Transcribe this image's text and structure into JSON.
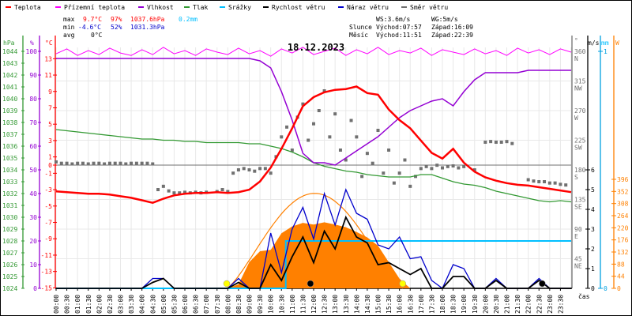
{
  "chart_data": {
    "type": "line",
    "title": "18.12.2023",
    "legend": [
      {
        "label": "Teplota",
        "color": "#ff0000"
      },
      {
        "label": "Přízemní teplota",
        "color": "#ff00ff"
      },
      {
        "label": "Vlhkost",
        "color": "#9400d3"
      },
      {
        "label": "Tlak",
        "color": "#339933"
      },
      {
        "label": "Srážky",
        "color": "#00bfff"
      },
      {
        "label": "Rychlost větru",
        "color": "#000000"
      },
      {
        "label": "Náraz větru",
        "color": "#0000cc"
      },
      {
        "label": "Směr větru",
        "color": "#707070"
      }
    ],
    "stats": {
      "max_label": "max",
      "min_label": "min",
      "avg_label": "avg",
      "temp_max": "9.7°C",
      "hum_max": "97%",
      "pres_max": "1037.6hPa",
      "rain_sum": "0.2mm",
      "temp_min": "-4.6°C",
      "hum_min": "52%",
      "pres_min": "1031.3hPa",
      "temp_avg": "0°C",
      "ws": "WS:3.6m/s",
      "wg": "WG:5m/s",
      "sun_label": "Slunce",
      "sun_rise": "Východ:07:57",
      "sun_set": "Západ:16:09",
      "moon_label": "Měsíc",
      "moon_rise": "Východ:11:51",
      "moon_set": "Západ:22:39"
    },
    "axes": {
      "pressure": {
        "unit": "hPa",
        "range": [
          1024,
          1044
        ],
        "ticks": [
          "1024",
          "1025",
          "1026",
          "1027",
          "1028",
          "1029",
          "1030",
          "1031",
          "1032",
          "1033",
          "1034",
          "1035",
          "1036",
          "1037",
          "1038",
          "1039",
          "1040",
          "1041",
          "1042",
          "1043",
          "1044"
        ]
      },
      "humidity": {
        "unit": "%",
        "range": [
          0,
          100
        ],
        "ticks": [
          "0",
          "10",
          "20",
          "30",
          "40",
          "50",
          "60",
          "70",
          "80",
          "90",
          "100"
        ]
      },
      "temperature": {
        "unit": "°C",
        "range": [
          -15,
          13
        ],
        "ticks": [
          "-15",
          "-13",
          "-11",
          "-9",
          "-7",
          "-5",
          "-3",
          "-1",
          "1",
          "3",
          "5",
          "7",
          "9",
          "11",
          "13"
        ],
        "zero_tick": "0"
      },
      "direction": {
        "unit": "°",
        "range": [
          0,
          360
        ],
        "ticks": [
          {
            "v": "45",
            "d": "NE"
          },
          {
            "v": "90",
            "d": "E"
          },
          {
            "v": "135",
            "d": "SE"
          },
          {
            "v": "180",
            "d": "S"
          },
          {
            "v": "225",
            "d": "SW"
          },
          {
            "v": "270",
            "d": "W"
          },
          {
            "v": "315",
            "d": "NW"
          },
          {
            "v": "360",
            "d": "N"
          }
        ]
      },
      "wind": {
        "unit": "m/s",
        "range": [
          0,
          6
        ],
        "ticks": [
          "0",
          "1",
          "2",
          "3",
          "4",
          "5",
          "6"
        ]
      },
      "rain": {
        "unit": "mm",
        "range": [
          0,
          1
        ],
        "ticks": [
          "0",
          "1"
        ]
      },
      "solar": {
        "unit": "W",
        "range": [
          0,
          396
        ],
        "ticks": [
          "0",
          "44",
          "88",
          "132",
          "176",
          "220",
          "264",
          "308",
          "352",
          "396"
        ]
      },
      "time": {
        "label": "čas",
        "ticks": [
          "00:00",
          "00:30",
          "01:00",
          "01:30",
          "02:00",
          "02:30",
          "03:00",
          "03:30",
          "04:00",
          "04:30",
          "05:00",
          "05:30",
          "06:00",
          "06:30",
          "07:00",
          "07:30",
          "08:00",
          "08:30",
          "09:00",
          "09:30",
          "10:00",
          "10:30",
          "11:00",
          "11:30",
          "12:00",
          "12:30",
          "13:00",
          "13:30",
          "14:00",
          "14:30",
          "15:00",
          "15:30",
          "16:00",
          "16:30",
          "17:00",
          "17:30",
          "18:00",
          "18:30",
          "19:00",
          "19:30",
          "20:00",
          "20:30",
          "21:00",
          "21:30",
          "22:00",
          "22:30",
          "23:00",
          "23:30"
        ]
      }
    },
    "x_hours_step": 0.5,
    "series": {
      "temperature": [
        -3.2,
        -3.3,
        -3.4,
        -3.5,
        -3.5,
        -3.6,
        -3.8,
        -4.0,
        -4.3,
        -4.6,
        -4.1,
        -3.7,
        -3.5,
        -3.4,
        -3.4,
        -3.3,
        -3.4,
        -3.3,
        -3.0,
        -2.0,
        -0.3,
        2.0,
        4.5,
        7.2,
        8.3,
        8.9,
        9.2,
        9.3,
        9.6,
        8.8,
        8.6,
        6.8,
        5.5,
        4.5,
        3.0,
        1.5,
        0.8,
        2.0,
        0.3,
        -0.8,
        -1.5,
        -1.9,
        -2.2,
        -2.4,
        -2.5,
        -2.7,
        -2.9,
        -3.1,
        -3.3
      ],
      "apparent_temperature": [
        13.6,
        14.2,
        13.4,
        14.0,
        13.5,
        14.3,
        13.7,
        13.4,
        14.1,
        13.5,
        14.4,
        13.6,
        14.0,
        13.4,
        14.2,
        13.8,
        13.5,
        14.3,
        13.6,
        14.0,
        13.3,
        14.2,
        13.7,
        14.4,
        13.5,
        13.9,
        14.3,
        13.4,
        14.1,
        13.6,
        14.4,
        13.5,
        14.0,
        13.7,
        14.3,
        13.4,
        14.1,
        13.8,
        13.5,
        14.2,
        13.6,
        14.0,
        13.4,
        14.3,
        13.7,
        14.1,
        13.5,
        14.2,
        13.8
      ],
      "humidity": [
        97,
        97,
        97,
        97,
        97,
        97,
        97,
        97,
        97,
        97,
        97,
        97,
        97,
        97,
        97,
        97,
        97,
        97,
        97,
        96,
        93,
        83,
        71,
        57,
        53,
        53,
        52,
        55,
        58,
        61,
        64,
        68,
        72,
        75,
        77,
        79,
        80,
        77,
        83,
        88,
        91,
        91,
        91,
        91,
        92,
        92,
        92,
        92,
        92
      ],
      "pressure": [
        1037.4,
        1037.3,
        1037.2,
        1037.1,
        1037.0,
        1036.9,
        1036.8,
        1036.7,
        1036.6,
        1036.6,
        1036.5,
        1036.5,
        1036.4,
        1036.4,
        1036.3,
        1036.3,
        1036.3,
        1036.3,
        1036.2,
        1036.2,
        1036.0,
        1035.8,
        1035.5,
        1035.1,
        1034.6,
        1034.3,
        1034.1,
        1033.9,
        1033.8,
        1033.6,
        1033.5,
        1033.4,
        1033.4,
        1033.4,
        1033.6,
        1033.6,
        1033.3,
        1033.0,
        1032.8,
        1032.7,
        1032.5,
        1032.2,
        1032.0,
        1031.8,
        1031.6,
        1031.4,
        1031.3,
        1031.4,
        1031.3
      ],
      "wind_speed": [
        0,
        0,
        0,
        0,
        0,
        0,
        0,
        0,
        0,
        0.3,
        0.5,
        0,
        0,
        0,
        0,
        0,
        0,
        0.3,
        0,
        0,
        1.2,
        0.4,
        1.6,
        2.6,
        1.3,
        2.9,
        2.0,
        3.6,
        2.6,
        2.3,
        1.2,
        1.3,
        1.0,
        0.7,
        1.0,
        0,
        0,
        0.6,
        0.6,
        0,
        0,
        0.4,
        0,
        0,
        0,
        0.4,
        0,
        0,
        0
      ],
      "wind_gust": [
        0,
        0,
        0,
        0,
        0,
        0,
        0,
        0,
        0,
        0.5,
        0.5,
        0,
        0,
        0,
        0,
        0,
        0,
        0.5,
        0,
        0,
        2.8,
        0.8,
        3.0,
        4.1,
        2.5,
        4.8,
        3.2,
        5.0,
        3.8,
        3.5,
        2.2,
        2.0,
        2.6,
        1.5,
        1.6,
        0.4,
        0,
        1.2,
        1.0,
        0,
        0,
        0.5,
        0,
        0,
        0,
        0.5,
        0,
        0,
        0
      ],
      "solar": [
        0,
        0,
        0,
        0,
        0,
        0,
        0,
        0,
        0,
        0,
        0,
        0,
        0,
        0,
        0,
        0,
        0,
        15,
        95,
        135,
        140,
        200,
        225,
        238,
        232,
        240,
        232,
        222,
        205,
        185,
        155,
        95,
        35,
        0,
        0,
        0,
        0,
        0,
        0,
        0,
        0,
        0,
        0,
        0,
        0,
        0,
        0,
        0,
        0
      ],
      "solar_theoretical_max": 345,
      "rain_cumulative": [
        [
          0,
          0
        ],
        [
          10.7,
          0
        ],
        [
          10.7,
          0.2
        ],
        [
          24,
          0.2
        ]
      ],
      "wind_direction": [
        [
          0,
          192
        ],
        [
          0.25,
          190
        ],
        [
          0.5,
          190
        ],
        [
          0.75,
          189
        ],
        [
          1,
          190
        ],
        [
          1.25,
          190
        ],
        [
          1.5,
          189
        ],
        [
          1.75,
          190
        ],
        [
          2,
          190
        ],
        [
          2.25,
          189
        ],
        [
          2.5,
          190
        ],
        [
          2.75,
          190
        ],
        [
          3,
          190
        ],
        [
          3.25,
          189
        ],
        [
          3.5,
          190
        ],
        [
          3.75,
          190
        ],
        [
          4,
          190
        ],
        [
          4.25,
          190
        ],
        [
          4.5,
          189
        ],
        [
          4.75,
          150
        ],
        [
          5,
          155
        ],
        [
          5.25,
          148
        ],
        [
          5.5,
          145
        ],
        [
          5.75,
          145
        ],
        [
          6,
          146
        ],
        [
          6.25,
          145
        ],
        [
          6.5,
          146
        ],
        [
          6.75,
          145
        ],
        [
          7,
          146
        ],
        [
          7.5,
          147
        ],
        [
          7.75,
          150
        ],
        [
          8,
          147
        ],
        [
          8.25,
          175
        ],
        [
          8.5,
          180
        ],
        [
          8.75,
          182
        ],
        [
          9,
          180
        ],
        [
          9.25,
          178
        ],
        [
          9.5,
          182
        ],
        [
          9.75,
          182
        ],
        [
          10,
          175
        ],
        [
          10.25,
          200
        ],
        [
          10.5,
          230
        ],
        [
          10.75,
          245
        ],
        [
          11,
          210
        ],
        [
          11.25,
          260
        ],
        [
          11.5,
          280
        ],
        [
          11.75,
          225
        ],
        [
          12,
          250
        ],
        [
          12.25,
          270
        ],
        [
          12.5,
          300
        ],
        [
          12.75,
          230
        ],
        [
          13,
          265
        ],
        [
          13.25,
          210
        ],
        [
          13.5,
          195
        ],
        [
          13.75,
          255
        ],
        [
          14,
          230
        ],
        [
          14.25,
          170
        ],
        [
          14.5,
          205
        ],
        [
          14.75,
          190
        ],
        [
          15,
          240
        ],
        [
          15.25,
          175
        ],
        [
          15.5,
          210
        ],
        [
          15.75,
          160
        ],
        [
          16,
          175
        ],
        [
          16.25,
          195
        ],
        [
          16.5,
          155
        ],
        [
          16.75,
          170
        ],
        [
          17,
          182
        ],
        [
          17.25,
          185
        ],
        [
          17.5,
          182
        ],
        [
          17.75,
          187
        ],
        [
          18,
          183
        ],
        [
          18.25,
          185
        ],
        [
          18.5,
          186
        ],
        [
          18.75,
          183
        ],
        [
          19,
          185
        ],
        [
          19.5,
          180
        ],
        [
          20,
          222
        ],
        [
          20.25,
          223
        ],
        [
          20.5,
          222
        ],
        [
          20.75,
          222
        ],
        [
          21,
          223
        ],
        [
          21.25,
          220
        ],
        [
          22,
          165
        ],
        [
          22.25,
          163
        ],
        [
          22.5,
          162
        ],
        [
          22.75,
          162
        ],
        [
          23,
          160
        ],
        [
          23.25,
          160
        ],
        [
          23.5,
          158
        ],
        [
          23.75,
          157
        ]
      ]
    },
    "markers": {
      "sunrise_h": 7.95,
      "sunset_h": 16.15,
      "moonrise_h": 11.85,
      "moonset_h": 22.65
    }
  }
}
